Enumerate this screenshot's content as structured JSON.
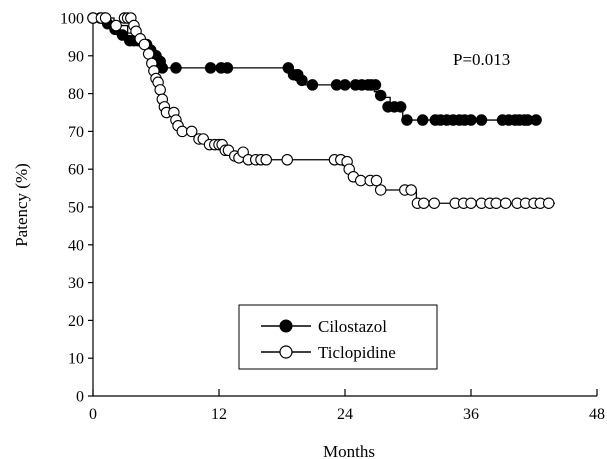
{
  "chart_data": {
    "type": "line",
    "title": "",
    "xlabel": "Months",
    "ylabel": "Patency (%)",
    "xlim": [
      0,
      48
    ],
    "ylim": [
      0,
      100
    ],
    "x_ticks": [
      0,
      12,
      24,
      36,
      48
    ],
    "y_ticks": [
      0,
      10,
      20,
      30,
      40,
      50,
      60,
      70,
      80,
      90,
      100
    ],
    "annotation": "P=0.013",
    "legend_position": "bottom-center",
    "series": [
      {
        "name": "Cilostazol",
        "marker": "filled-circle",
        "color": "#000000",
        "steps": [
          [
            0,
            100
          ],
          [
            1.2,
            98.5
          ],
          [
            1.8,
            97
          ],
          [
            2.5,
            95.5
          ],
          [
            3.3,
            94
          ],
          [
            4.6,
            93
          ],
          [
            5.4,
            91.5
          ],
          [
            5.8,
            90
          ],
          [
            6.3,
            88.5
          ],
          [
            6.7,
            86.8
          ],
          [
            18.7,
            85
          ],
          [
            19.3,
            83.5
          ],
          [
            20.1,
            82.3
          ],
          [
            26.8,
            80.5
          ],
          [
            27.3,
            79
          ],
          [
            28.3,
            76.5
          ],
          [
            29.5,
            73
          ],
          [
            42.5,
            73
          ]
        ],
        "markers": [
          [
            0,
            100
          ],
          [
            0.7,
            100
          ],
          [
            1.1,
            100
          ],
          [
            1.4,
            98.5
          ],
          [
            2.1,
            97
          ],
          [
            2.8,
            95.5
          ],
          [
            3.5,
            94
          ],
          [
            3.9,
            94
          ],
          [
            4.3,
            94
          ],
          [
            5.1,
            93
          ],
          [
            5.5,
            91.5
          ],
          [
            6.0,
            90
          ],
          [
            6.4,
            88.5
          ],
          [
            6.6,
            86.8
          ],
          [
            7.9,
            86.8
          ],
          [
            11.2,
            86.8
          ],
          [
            12.2,
            86.8
          ],
          [
            12.8,
            86.8
          ],
          [
            18.6,
            86.8
          ],
          [
            19.1,
            85
          ],
          [
            19.5,
            85
          ],
          [
            19.9,
            83.5
          ],
          [
            20.9,
            82.3
          ],
          [
            23.2,
            82.3
          ],
          [
            24.0,
            82.3
          ],
          [
            25.0,
            82.3
          ],
          [
            25.6,
            82.3
          ],
          [
            26.2,
            82.3
          ],
          [
            26.5,
            82.3
          ],
          [
            26.9,
            82.3
          ],
          [
            27.4,
            79.5
          ],
          [
            28.1,
            76.5
          ],
          [
            28.7,
            76.5
          ],
          [
            29.3,
            76.5
          ],
          [
            29.9,
            73
          ],
          [
            31.4,
            73
          ],
          [
            32.6,
            73
          ],
          [
            33.1,
            73
          ],
          [
            33.7,
            73
          ],
          [
            34.3,
            73
          ],
          [
            34.9,
            73
          ],
          [
            35.4,
            73
          ],
          [
            36.0,
            73
          ],
          [
            37.0,
            73
          ],
          [
            39.0,
            73
          ],
          [
            39.6,
            73
          ],
          [
            40.2,
            73
          ],
          [
            40.6,
            73
          ],
          [
            41.1,
            73
          ],
          [
            41.4,
            73
          ],
          [
            42.2,
            73
          ]
        ]
      },
      {
        "name": "Ticlopidine",
        "marker": "open-circle",
        "color": "#000000",
        "steps": [
          [
            0,
            100
          ],
          [
            2.0,
            98
          ],
          [
            3.3,
            96
          ],
          [
            3.9,
            94.5
          ],
          [
            4.7,
            93
          ],
          [
            5.2,
            90.5
          ],
          [
            5.5,
            88
          ],
          [
            5.8,
            86
          ],
          [
            6.1,
            83.5
          ],
          [
            6.3,
            81
          ],
          [
            6.5,
            78.5
          ],
          [
            6.8,
            75
          ],
          [
            7.6,
            73
          ],
          [
            7.9,
            71.5
          ],
          [
            8.3,
            70
          ],
          [
            9.3,
            69
          ],
          [
            10.2,
            68
          ],
          [
            10.8,
            66.5
          ],
          [
            12.4,
            65
          ],
          [
            13.3,
            63.5
          ],
          [
            14.0,
            62.5
          ],
          [
            23.8,
            61
          ],
          [
            24.5,
            58
          ],
          [
            25.0,
            57
          ],
          [
            27.3,
            54.5
          ],
          [
            30.8,
            51
          ],
          [
            44.0,
            51
          ]
        ],
        "markers": [
          [
            0,
            100
          ],
          [
            0.8,
            100
          ],
          [
            1.2,
            100
          ],
          [
            2.2,
            98
          ],
          [
            3.0,
            100
          ],
          [
            3.3,
            100
          ],
          [
            3.6,
            100
          ],
          [
            3.9,
            98
          ],
          [
            4.1,
            96.5
          ],
          [
            4.5,
            94.5
          ],
          [
            4.9,
            93
          ],
          [
            5.3,
            90.5
          ],
          [
            5.6,
            88
          ],
          [
            5.8,
            86
          ],
          [
            6.0,
            84
          ],
          [
            6.2,
            83
          ],
          [
            6.4,
            81
          ],
          [
            6.6,
            78.5
          ],
          [
            6.8,
            76.5
          ],
          [
            7.0,
            75
          ],
          [
            7.7,
            75
          ],
          [
            7.9,
            73
          ],
          [
            8.1,
            71.5
          ],
          [
            8.5,
            70
          ],
          [
            9.4,
            70
          ],
          [
            10.1,
            68
          ],
          [
            10.5,
            68
          ],
          [
            11.1,
            66.5
          ],
          [
            11.6,
            66.5
          ],
          [
            12.0,
            66.5
          ],
          [
            12.3,
            66.5
          ],
          [
            12.6,
            65
          ],
          [
            12.9,
            65
          ],
          [
            13.5,
            63.5
          ],
          [
            13.9,
            63
          ],
          [
            14.3,
            64.5
          ],
          [
            14.8,
            62.5
          ],
          [
            15.5,
            62.5
          ],
          [
            16.0,
            62.5
          ],
          [
            16.5,
            62.5
          ],
          [
            18.5,
            62.5
          ],
          [
            23.0,
            62.5
          ],
          [
            23.6,
            62.5
          ],
          [
            24.2,
            62
          ],
          [
            24.4,
            60
          ],
          [
            24.8,
            58
          ],
          [
            25.5,
            57
          ],
          [
            26.4,
            57
          ],
          [
            27.0,
            57
          ],
          [
            27.4,
            54.5
          ],
          [
            29.7,
            54.5
          ],
          [
            30.3,
            54.5
          ],
          [
            30.9,
            51
          ],
          [
            31.5,
            51
          ],
          [
            32.5,
            51
          ],
          [
            34.5,
            51
          ],
          [
            35.3,
            51
          ],
          [
            36.0,
            51
          ],
          [
            37.0,
            51
          ],
          [
            37.8,
            51
          ],
          [
            38.4,
            51
          ],
          [
            39.3,
            51
          ],
          [
            40.4,
            51
          ],
          [
            41.2,
            51
          ],
          [
            42.0,
            51
          ],
          [
            42.6,
            51
          ],
          [
            43.4,
            51
          ]
        ]
      }
    ]
  }
}
